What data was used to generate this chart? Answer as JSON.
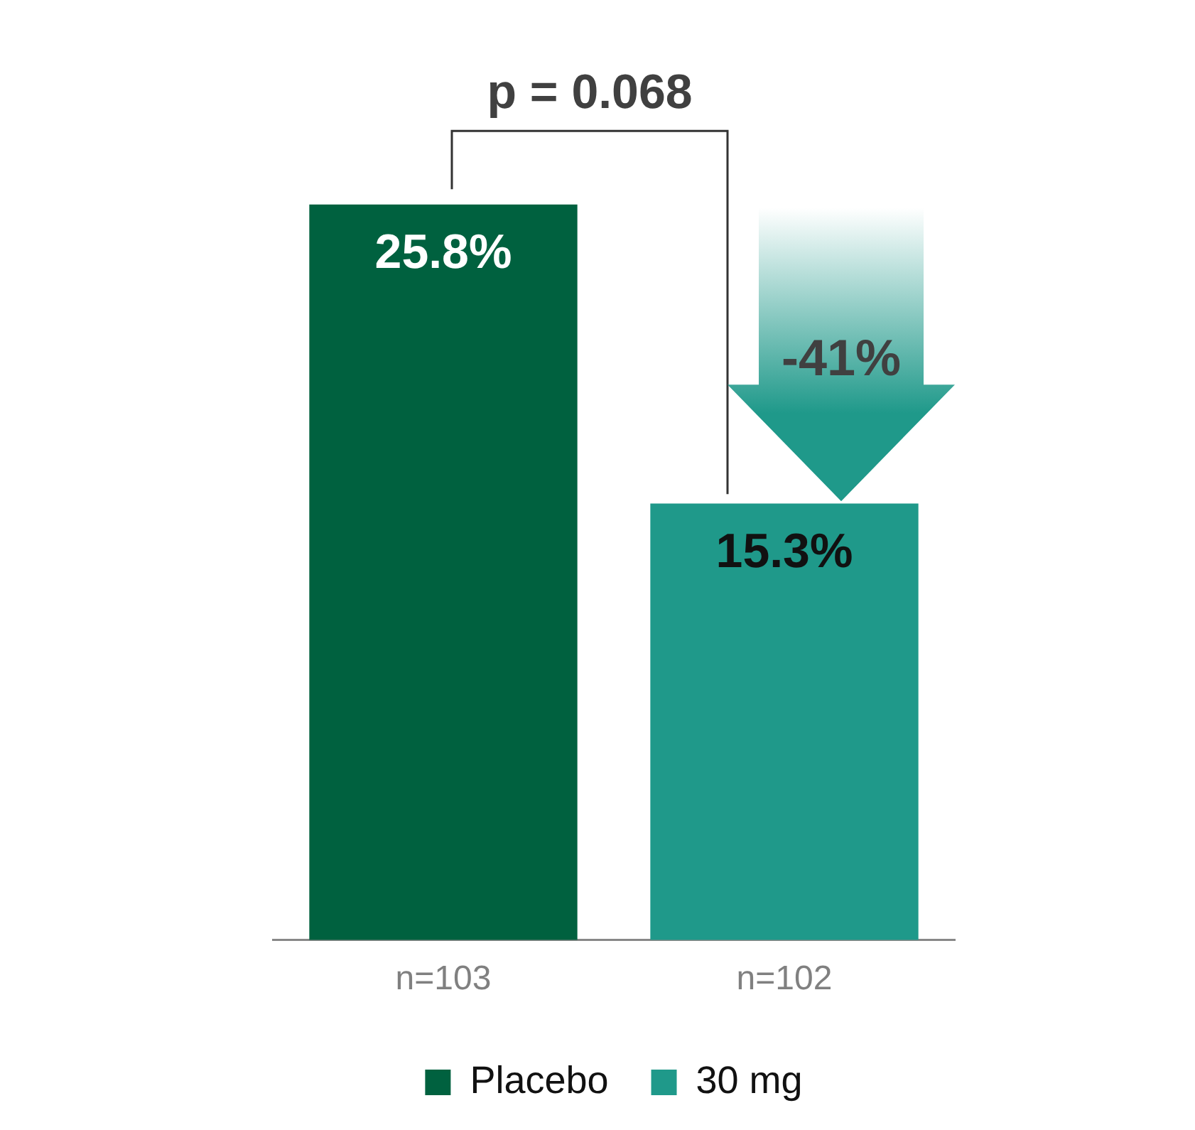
{
  "chart_data": {
    "type": "bar",
    "categories": [
      "n=103",
      "n=102"
    ],
    "series": [
      {
        "name": "Placebo",
        "color": "#00613f",
        "values": [
          25.8,
          null
        ],
        "value_labels": [
          "25.8%",
          null
        ]
      },
      {
        "name": "30 mg",
        "color": "#1f998a",
        "values": [
          null,
          15.3
        ],
        "value_labels": [
          null,
          "15.3%"
        ]
      }
    ],
    "annotations": [
      "p = 0.068",
      "-41%"
    ],
    "legend": "bottom",
    "grid": false
  }
}
